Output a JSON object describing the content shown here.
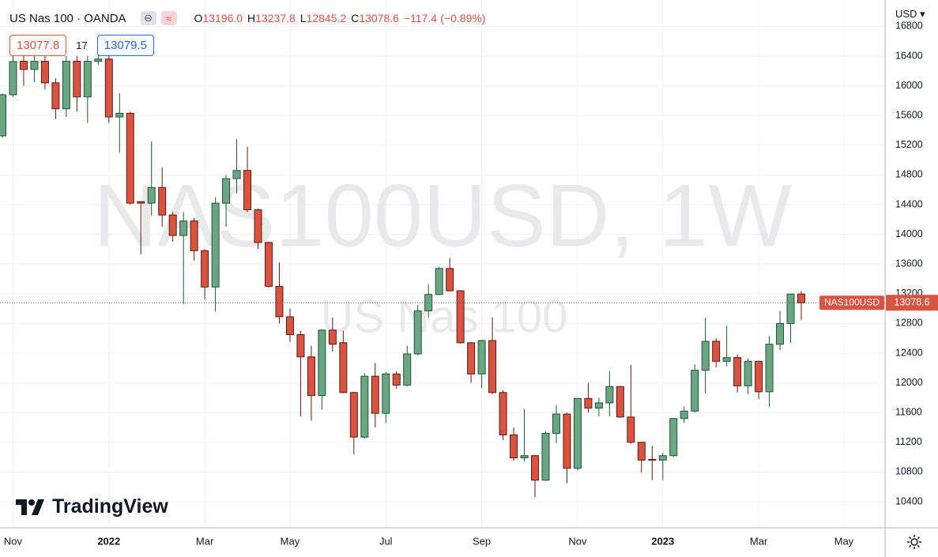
{
  "header": {
    "symbol": "US Nas 100 · OANDA",
    "ohlc": [
      {
        "key": "O",
        "value": "13196.0"
      },
      {
        "key": "H",
        "value": "13237.8"
      },
      {
        "key": "L",
        "value": "12845.2"
      },
      {
        "key": "C",
        "value": "13078.6"
      }
    ],
    "change": "−117.4",
    "change_pct": "(−0.89%)",
    "bid": "13077.8",
    "spread": "17",
    "ask": "13079.5",
    "currency": "USD",
    "logo": "TradingView"
  },
  "chart_data": {
    "type": "candlestick",
    "watermark": "NAS100USD, 1W",
    "watermark_sub": "US Nas 100",
    "price_tag_symbol": "NAS100USD",
    "up_color": "#6ba583",
    "up_border": "#225437",
    "down_color": "#d75442",
    "down_border": "#5b1a13",
    "grid": true,
    "categories": [
      null,
      "Nov",
      null,
      null,
      null,
      null,
      null,
      null,
      null,
      null,
      "2022",
      null,
      null,
      null,
      null,
      null,
      null,
      null,
      null,
      "Mar",
      null,
      null,
      null,
      null,
      null,
      null,
      null,
      "May",
      null,
      null,
      null,
      null,
      null,
      null,
      null,
      null,
      "Jul",
      null,
      null,
      null,
      null,
      null,
      null,
      null,
      null,
      "Sep",
      null,
      null,
      null,
      null,
      null,
      null,
      null,
      null,
      "Nov",
      null,
      null,
      null,
      null,
      null,
      null,
      null,
      "2023",
      null,
      null,
      null,
      null,
      null,
      null,
      null,
      null,
      "Mar",
      null,
      null,
      null,
      null,
      null,
      null,
      null,
      "May",
      null,
      null,
      null
    ],
    "open": [
      15326,
      15879,
      16330,
      16220,
      16330,
      16040,
      15690,
      16330,
      15850,
      16330,
      16360,
      15580,
      15630,
      14440,
      14420,
      14630,
      14260,
      13985,
      14180,
      13780,
      13290,
      14420,
      14750,
      14860,
      14330,
      13890,
      13300,
      12890,
      12650,
      12350,
      11830,
      12710,
      12540,
      11870,
      11270,
      12090,
      11590,
      12120,
      11970,
      12390,
      12970,
      13190,
      13540,
      13240,
      12540,
      12120,
      12570,
      11870,
      11300,
      10990,
      11020,
      10690,
      11320,
      11580,
      10850,
      11790,
      11660,
      11730,
      11950,
      11540,
      11200,
      10970,
      10960,
      11020,
      11520,
      11620,
      12170,
      12560,
      12290,
      12340,
      11960,
      12290,
      11880,
      12520,
      12800,
      13196.0,
      null,
      null,
      null,
      null,
      null,
      null,
      null
    ],
    "high": [
      15900,
      16410,
      16450,
      16500,
      16500,
      16100,
      16400,
      16400,
      16400,
      16420,
      16420,
      15900,
      15650,
      14450,
      15250,
      14900,
      14300,
      14300,
      14220,
      13800,
      14500,
      14800,
      15280,
      15180,
      14350,
      13900,
      13620,
      13000,
      12700,
      12500,
      12720,
      12880,
      12700,
      11880,
      12130,
      12270,
      12150,
      12160,
      12500,
      13050,
      13330,
      13560,
      13680,
      13250,
      12550,
      12580,
      12880,
      11900,
      11400,
      11650,
      11030,
      11350,
      11700,
      11600,
      11800,
      12000,
      11800,
      12160,
      11960,
      12240,
      11210,
      11150,
      11060,
      11530,
      11680,
      12250,
      12880,
      12600,
      12770,
      12380,
      12330,
      12300,
      12630,
      12970,
      13200,
      13237.8,
      null,
      null,
      null,
      null,
      null,
      null,
      null
    ],
    "low": [
      15300,
      15850,
      16000,
      16050,
      15950,
      15550,
      15580,
      15650,
      15500,
      16280,
      15500,
      15100,
      14400,
      13730,
      14250,
      14100,
      13900,
      13060,
      13650,
      13120,
      12960,
      14100,
      14550,
      14300,
      13800,
      13280,
      12800,
      12550,
      11550,
      11490,
      11640,
      12420,
      11860,
      11040,
      11250,
      11400,
      11460,
      11920,
      11950,
      12370,
      12880,
      13180,
      13230,
      12530,
      12000,
      11930,
      11850,
      11230,
      10950,
      10940,
      10460,
      10680,
      11190,
      10650,
      10820,
      11600,
      11550,
      11550,
      11530,
      11180,
      10790,
      10690,
      10690,
      11000,
      11460,
      11600,
      11860,
      12210,
      12220,
      11870,
      11850,
      11780,
      11680,
      12440,
      12540,
      12845.2,
      null,
      null,
      null,
      null,
      null,
      null,
      null
    ],
    "close": [
      15879,
      16326,
      16220,
      16330,
      16040,
      15690,
      16330,
      15850,
      16330,
      16360,
      15580,
      15630,
      14420,
      14420,
      14630,
      14260,
      13985,
      14180,
      13780,
      13290,
      14420,
      14750,
      14860,
      14330,
      13890,
      13300,
      12890,
      12650,
      12350,
      11830,
      12710,
      12520,
      11870,
      11270,
      12090,
      11590,
      12120,
      11970,
      12390,
      12970,
      13190,
      13540,
      13240,
      12540,
      12120,
      12570,
      11870,
      11300,
      10990,
      11020,
      10690,
      11320,
      11580,
      10850,
      11790,
      11660,
      11730,
      11950,
      11540,
      11200,
      10960,
      10960,
      11020,
      11520,
      11620,
      12170,
      12560,
      12290,
      12340,
      11960,
      12290,
      11880,
      12520,
      12800,
      13196,
      13078.6,
      null,
      null,
      null,
      null,
      null,
      null,
      null
    ],
    "ylim": [
      10049,
      17155
    ],
    "yticks": [
      10400,
      10800,
      11200,
      11600,
      12000,
      12400,
      12800,
      13200,
      13600,
      14000,
      14400,
      14800,
      15200,
      15600,
      16000,
      16400,
      16800
    ]
  }
}
